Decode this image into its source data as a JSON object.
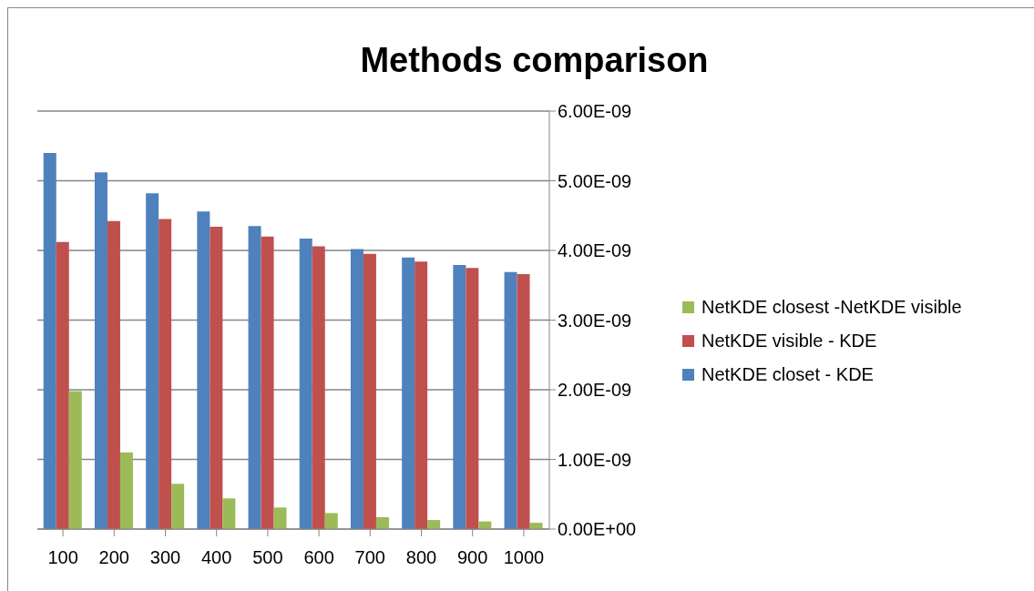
{
  "chart_data": {
    "type": "bar",
    "title": "Methods comparison",
    "categories": [
      "100",
      "200",
      "300",
      "400",
      "500",
      "600",
      "700",
      "800",
      "900",
      "1000"
    ],
    "series": [
      {
        "name": "NetKDE closet - KDE",
        "color": "#4f81bd",
        "values": [
          5.4e-09,
          5.12e-09,
          4.82e-09,
          4.56e-09,
          4.35e-09,
          4.17e-09,
          4.02e-09,
          3.9e-09,
          3.79e-09,
          3.69e-09
        ]
      },
      {
        "name": "NetKDE visible - KDE",
        "color": "#c0504d",
        "values": [
          4.12e-09,
          4.42e-09,
          4.45e-09,
          4.34e-09,
          4.2e-09,
          4.06e-09,
          3.95e-09,
          3.84e-09,
          3.75e-09,
          3.66e-09
        ]
      },
      {
        "name": "NetKDE closest -NetKDE visible",
        "color": "#9bbb59",
        "values": [
          1.98e-09,
          1.1e-09,
          6.5e-10,
          4.4e-10,
          3.1e-10,
          2.3e-10,
          1.7e-10,
          1.3e-10,
          1.1e-10,
          9e-11
        ]
      }
    ],
    "ylim": [
      0,
      6e-09
    ],
    "yticks": [
      {
        "value": 0,
        "label": "0.00E+00"
      },
      {
        "value": 1e-09,
        "label": "1.00E-09"
      },
      {
        "value": 2e-09,
        "label": "2.00E-09"
      },
      {
        "value": 3e-09,
        "label": "3.00E-09"
      },
      {
        "value": 4e-09,
        "label": "4.00E-09"
      },
      {
        "value": 5e-09,
        "label": "5.00E-09"
      },
      {
        "value": 6e-09,
        "label": "6.00E-09"
      }
    ],
    "grid": "y",
    "legend": "right"
  }
}
